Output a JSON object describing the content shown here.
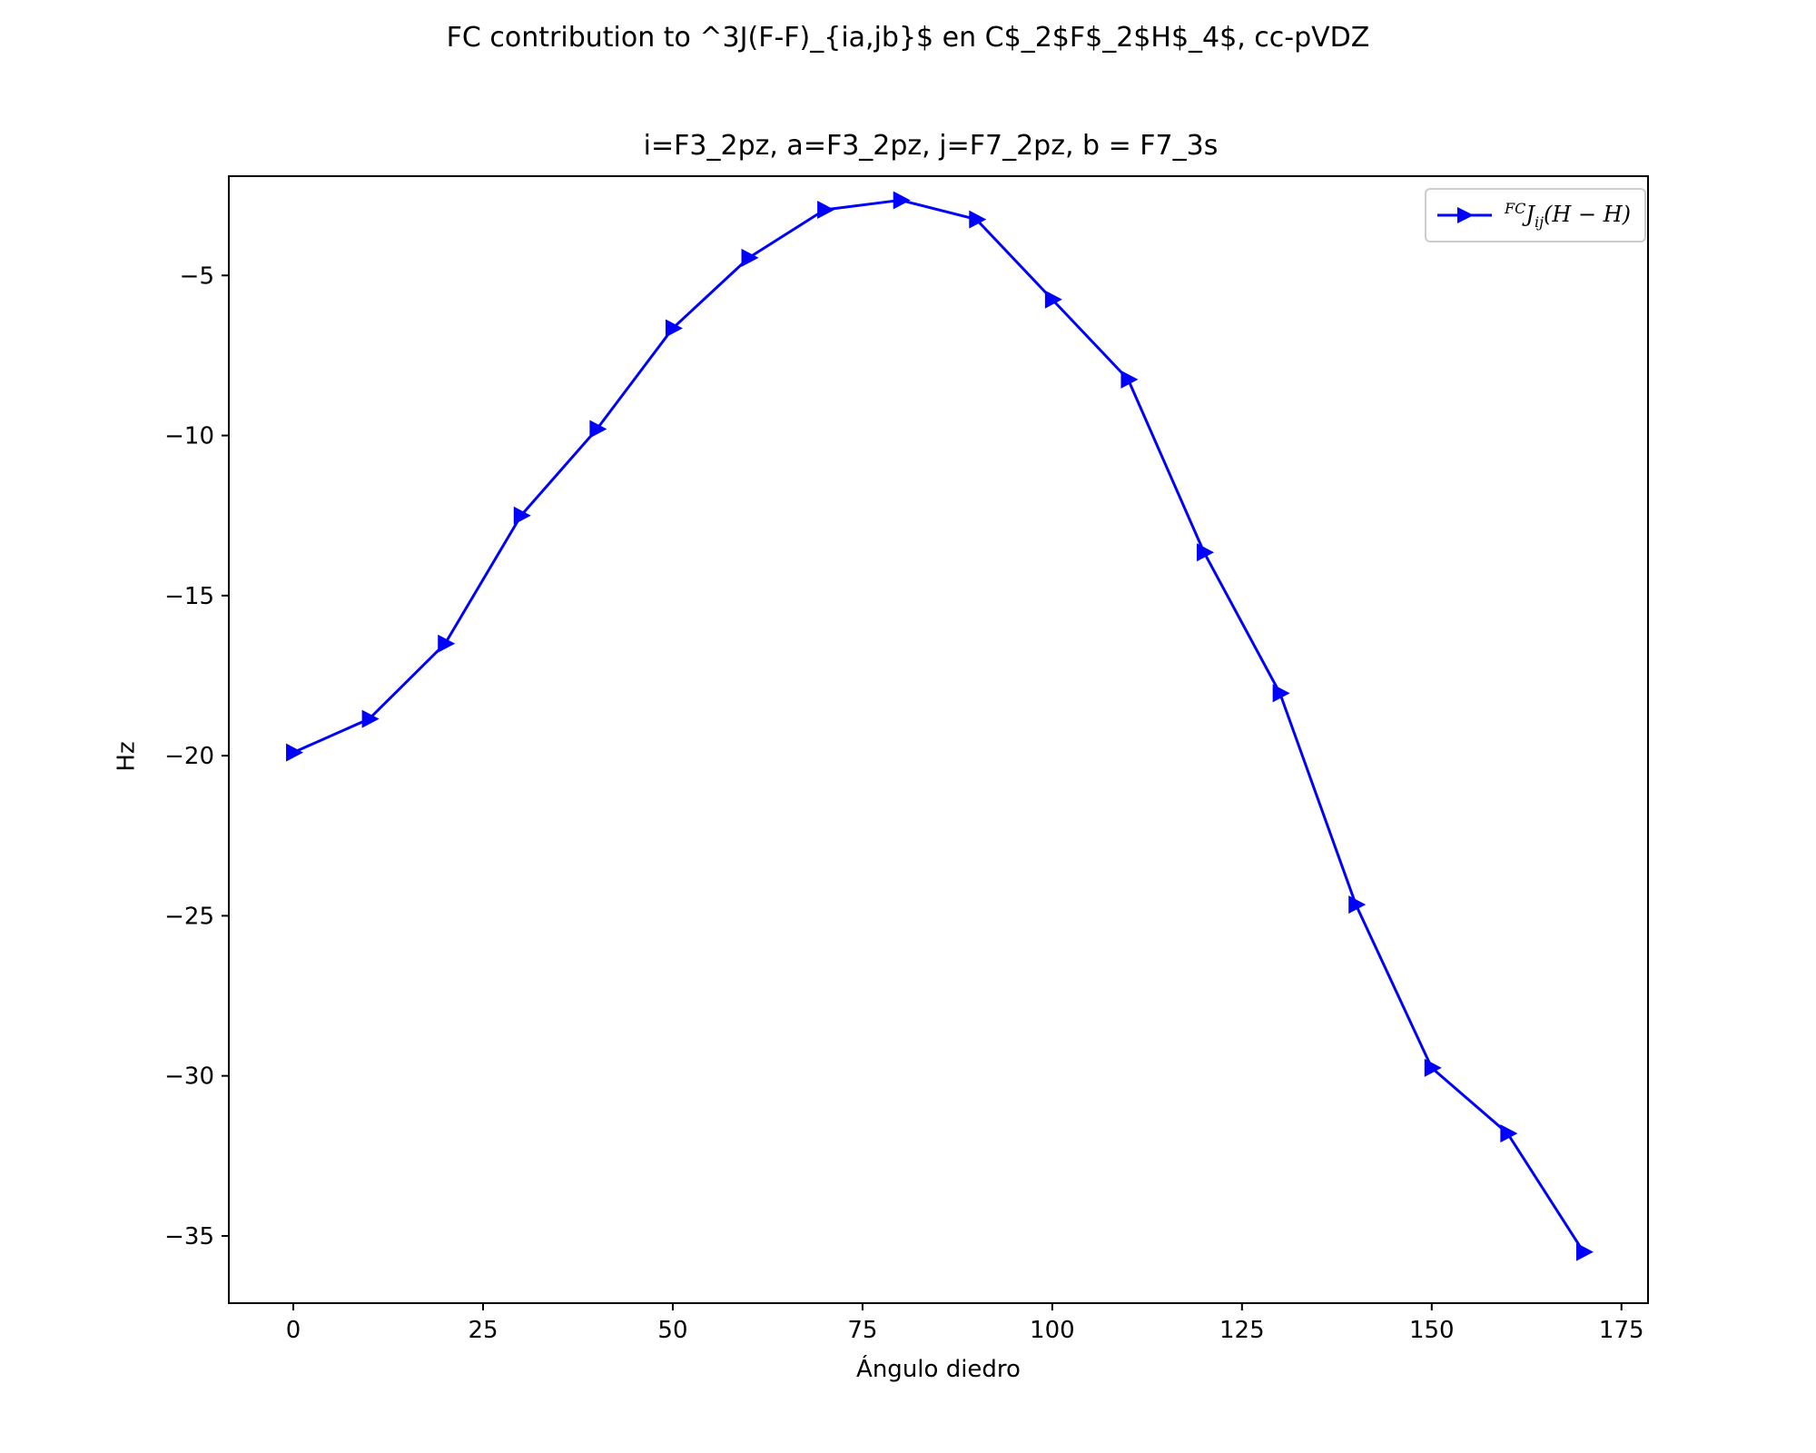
{
  "figure": {
    "suptitle": "FC contribution to ^3J(F-F)_{ia,jb}$ en C$_2$F$_2$H$_4$, cc-pVDZ",
    "subtitle": "i=F3_2pz, a=F3_2pz, j=F7_2pz, b = F7_3s"
  },
  "chart_data": {
    "type": "line",
    "title": "i=F3_2pz, a=F3_2pz, j=F7_2pz, b = F7_3s",
    "xlabel": "Ángulo diedro",
    "ylabel": "Hz",
    "xlim": [
      -8.5,
      178.5
    ],
    "ylim": [
      -37.1,
      -1.9
    ],
    "xticks": [
      0,
      25,
      50,
      75,
      100,
      125,
      150,
      175
    ],
    "xtick_labels": [
      "0",
      "25",
      "50",
      "75",
      "100",
      "125",
      "150",
      "175"
    ],
    "yticks": [
      -35,
      -30,
      -25,
      -20,
      -15,
      -10,
      -5
    ],
    "ytick_labels": [
      "−35",
      "−30",
      "−25",
      "−20",
      "−15",
      "−10",
      "−5"
    ],
    "grid": false,
    "legend_position": "top-right",
    "series": [
      {
        "name": "FCJij(H−H)",
        "color": "#0000ff",
        "marker": "triangle-right",
        "x": [
          0,
          10,
          20,
          30,
          40,
          50,
          60,
          70,
          80,
          90,
          100,
          110,
          120,
          130,
          140,
          150,
          160,
          170
        ],
        "y": [
          -19.9,
          -18.85,
          -16.5,
          -12.5,
          -9.8,
          -6.65,
          -4.45,
          -2.95,
          -2.65,
          -3.25,
          -5.75,
          -8.25,
          -13.65,
          -18.05,
          -24.65,
          -29.75,
          -31.8,
          -35.5
        ]
      }
    ]
  }
}
